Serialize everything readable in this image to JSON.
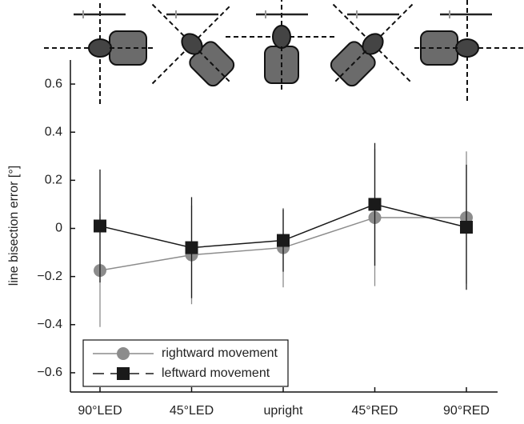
{
  "chart_data": {
    "type": "line",
    "y_label": "line bisection error [°]",
    "categories": [
      "90°LED",
      "45°LED",
      "upright",
      "45°RED",
      "90°RED"
    ],
    "ylim": [
      -0.68,
      0.7
    ],
    "yticks": [
      {
        "value": -0.6,
        "label": "−0.6"
      },
      {
        "value": -0.4,
        "label": "−0.4"
      },
      {
        "value": -0.2,
        "label": "−0.2"
      },
      0,
      0.2,
      0.4,
      0.6
    ],
    "legend": "lower left",
    "series": [
      {
        "name": "rightward movement",
        "color": "#8c8c8c",
        "marker": "circle",
        "dash": false,
        "values": [
          -0.175,
          -0.11,
          -0.08,
          0.045,
          0.045
        ],
        "errors": [
          0.235,
          0.205,
          0.165,
          0.285,
          0.275
        ]
      },
      {
        "name": "leftward movement",
        "color": "#1a1a1a",
        "marker": "square",
        "dash": true,
        "values": [
          0.01,
          -0.08,
          -0.05,
          0.1,
          0.005
        ],
        "errors": [
          0.235,
          0.21,
          0.13,
          0.255,
          0.26
        ]
      }
    ]
  }
}
